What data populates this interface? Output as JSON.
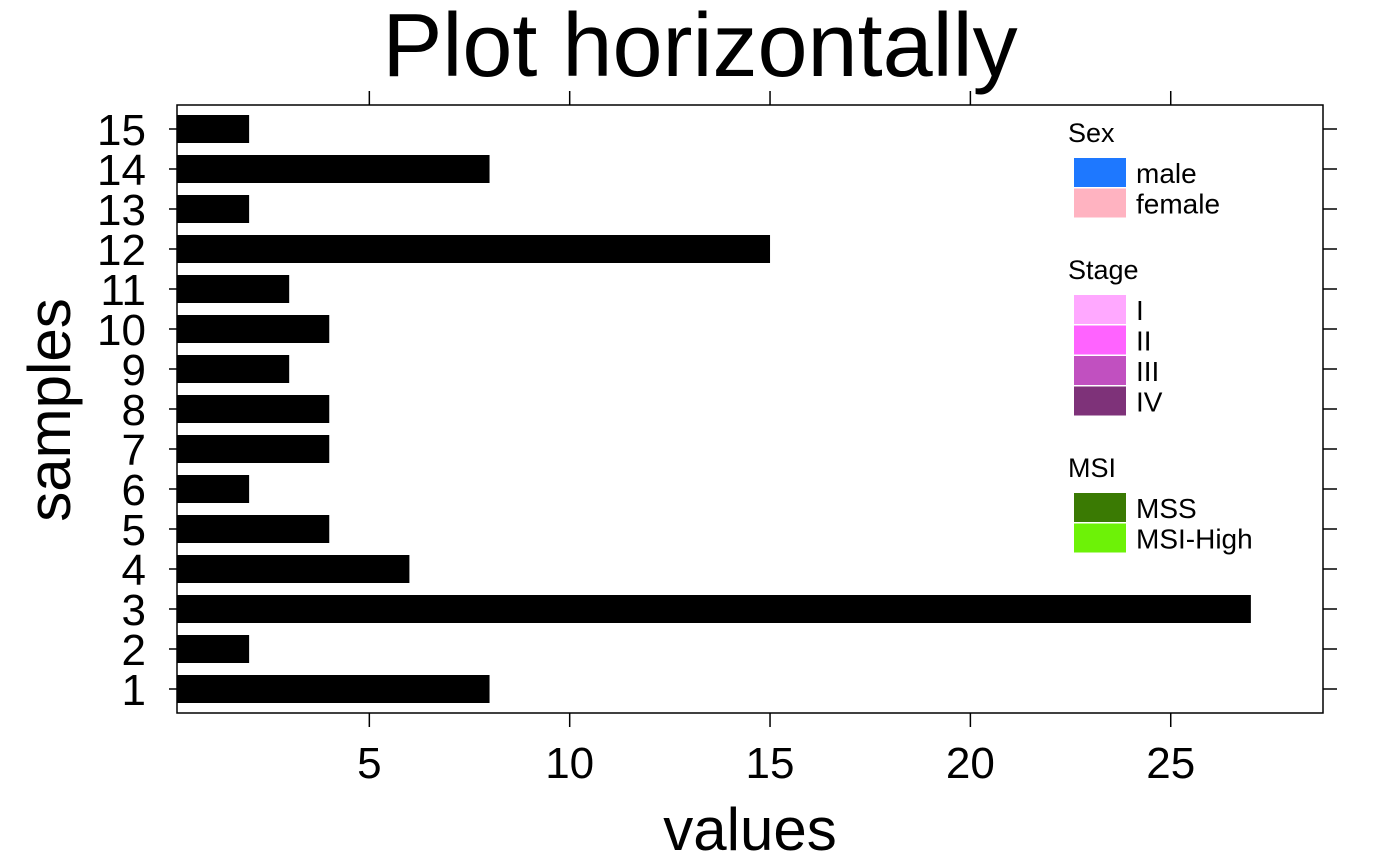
{
  "chart_data": {
    "type": "bar",
    "orientation": "horizontal",
    "title": "Plot horizontally",
    "xlabel": "values",
    "ylabel": "samples",
    "categories": [
      "1",
      "2",
      "3",
      "4",
      "5",
      "6",
      "7",
      "8",
      "9",
      "10",
      "11",
      "12",
      "13",
      "14",
      "15"
    ],
    "values": [
      8,
      2,
      27,
      6,
      4,
      2,
      4,
      4,
      3,
      4,
      3,
      15,
      2,
      8,
      2
    ],
    "xlim": [
      0.2,
      28.8
    ],
    "xticks": [
      "5",
      "10",
      "15",
      "20",
      "25"
    ],
    "bar_color": "#000000",
    "grid": false,
    "legend_position": "top-right",
    "legend": [
      {
        "title": "Sex",
        "items": [
          {
            "label": "male",
            "color": "#1E78FF"
          },
          {
            "label": "female",
            "color": "#FFB3C1"
          }
        ]
      },
      {
        "title": "Stage",
        "items": [
          {
            "label": "I",
            "color": "#FFA8FF"
          },
          {
            "label": "II",
            "color": "#FF63FF"
          },
          {
            "label": "III",
            "color": "#C150C0"
          },
          {
            "label": "IV",
            "color": "#7E3279"
          }
        ]
      },
      {
        "title": "MSI",
        "items": [
          {
            "label": "MSS",
            "color": "#3A7A03"
          },
          {
            "label": "MSI-High",
            "color": "#6DF207"
          }
        ]
      }
    ]
  }
}
